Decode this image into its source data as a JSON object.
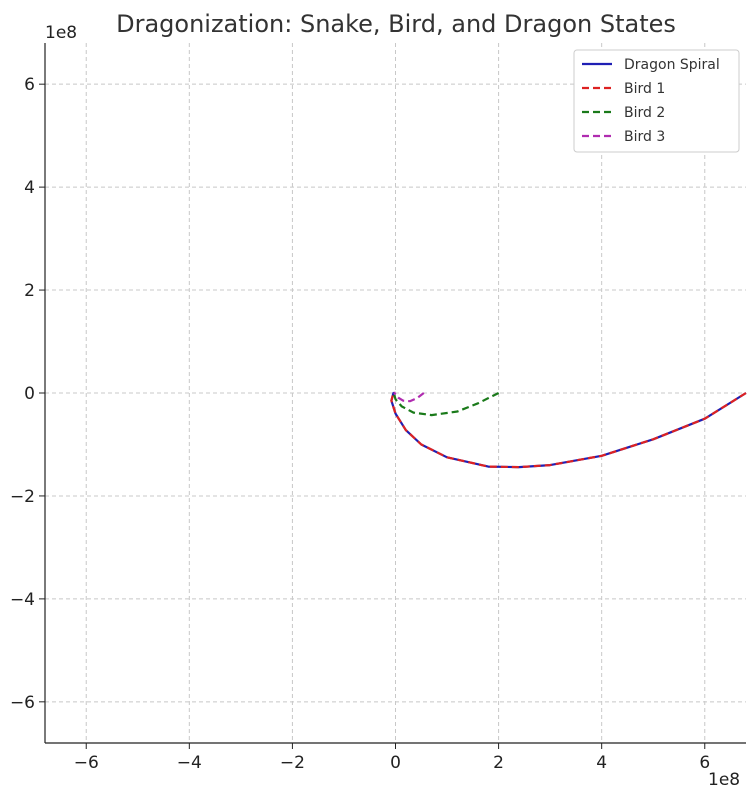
{
  "chart_data": {
    "type": "line",
    "title": "Dragonization: Snake, Bird, and Dragon States",
    "xlabel": "",
    "ylabel": "",
    "x_offset_label": "1e8",
    "y_offset_label": "1e8",
    "xlim": [
      -6.8,
      6.8
    ],
    "ylim": [
      -6.8,
      6.8
    ],
    "xticks": [
      -6,
      -4,
      -2,
      0,
      2,
      4,
      6
    ],
    "yticks": [
      -6,
      -4,
      -2,
      0,
      2,
      4,
      6
    ],
    "xtick_labels": [
      "−6",
      "−4",
      "−2",
      "0",
      "2",
      "4",
      "6"
    ],
    "ytick_labels": [
      "−6",
      "−4",
      "−2",
      "0",
      "2",
      "4",
      "6"
    ],
    "grid": true,
    "legend_position": "top-right",
    "series": [
      {
        "name": "Dragon Spiral",
        "color": "#1f1fb4",
        "style": "solid",
        "x": [
          6.8,
          6.0,
          5.0,
          4.0,
          3.0,
          2.4,
          1.8,
          1.0,
          0.5,
          0.2,
          0.0,
          -0.08,
          -0.04,
          0.0
        ],
        "y": [
          0.0,
          -0.5,
          -0.9,
          -1.22,
          -1.4,
          -1.44,
          -1.43,
          -1.25,
          -1.0,
          -0.72,
          -0.4,
          -0.15,
          0.0,
          0.0
        ]
      },
      {
        "name": "Bird 1",
        "color": "#dd2222",
        "style": "dashed",
        "x": [
          6.8,
          6.0,
          5.0,
          4.0,
          3.0,
          2.4,
          1.8,
          1.0,
          0.5,
          0.2,
          0.0,
          -0.08,
          -0.04,
          0.0
        ],
        "y": [
          0.0,
          -0.5,
          -0.9,
          -1.22,
          -1.4,
          -1.44,
          -1.43,
          -1.25,
          -1.0,
          -0.72,
          -0.4,
          -0.15,
          0.0,
          0.0
        ]
      },
      {
        "name": "Bird 2",
        "color": "#1a7a1a",
        "style": "dashed",
        "x": [
          2.0,
          1.6,
          1.2,
          0.7,
          0.35,
          0.12,
          0.0,
          -0.03,
          0.0
        ],
        "y": [
          0.0,
          -0.2,
          -0.36,
          -0.43,
          -0.38,
          -0.26,
          -0.12,
          -0.02,
          0.0
        ]
      },
      {
        "name": "Bird 3",
        "color": "#b02cb0",
        "style": "dashed",
        "x": [
          0.55,
          0.42,
          0.28,
          0.15,
          0.05,
          0.0,
          -0.02,
          0.0
        ],
        "y": [
          0.0,
          -0.1,
          -0.16,
          -0.15,
          -0.09,
          -0.03,
          0.0,
          0.0
        ]
      }
    ]
  }
}
